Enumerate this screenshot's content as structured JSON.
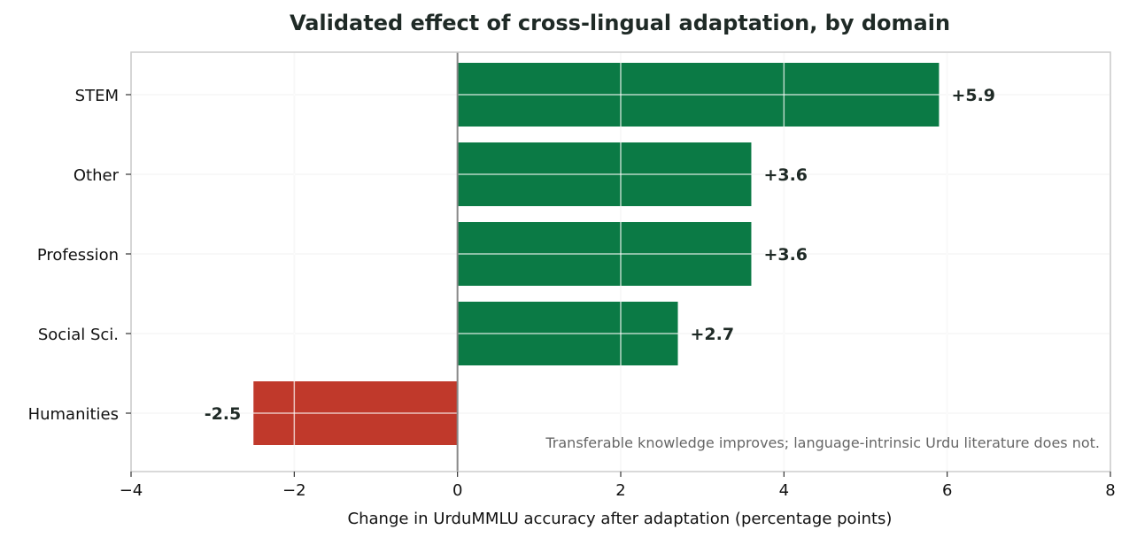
{
  "chart_data": {
    "type": "bar",
    "orientation": "horizontal",
    "title": "Validated effect of cross-lingual adaptation, by domain",
    "xlabel": "Change in UrduMMLU accuracy after adaptation (percentage points)",
    "ylabel": "",
    "categories": [
      "STEM",
      "Other",
      "Profession",
      "Social Sci.",
      "Humanities"
    ],
    "values": [
      5.9,
      3.6,
      3.6,
      2.7,
      -2.5
    ],
    "value_labels": [
      "+5.9",
      "+3.6",
      "+3.6",
      "+2.7",
      "-2.5"
    ],
    "xlim": [
      -4,
      8
    ],
    "xticks": [
      -4,
      -2,
      0,
      2,
      4,
      6,
      8
    ],
    "xtick_labels": [
      "−4",
      "−2",
      "0",
      "2",
      "4",
      "6",
      "8"
    ],
    "annotation": "Transferable knowledge improves; language-intrinsic Urdu literature does not.",
    "grid": true,
    "colors": {
      "positive": "#0b7a45",
      "negative": "#c0392b",
      "grid": "#e8e8e8",
      "zero_line": "#888888",
      "frame": "#cccccc"
    }
  }
}
